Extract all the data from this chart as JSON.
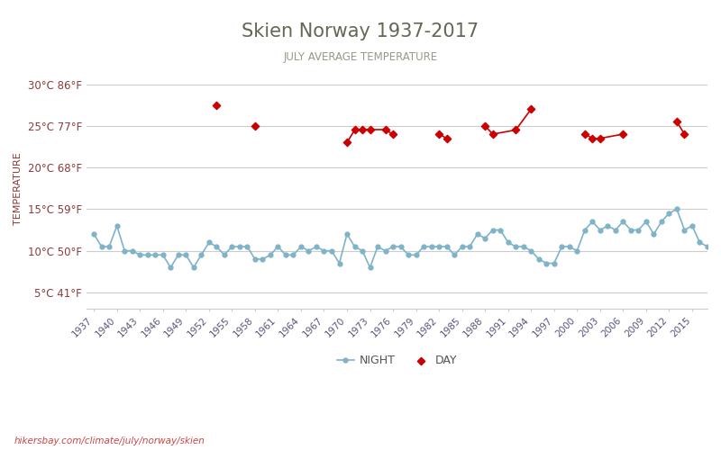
{
  "title": "Skien Norway 1937-2017",
  "subtitle": "JULY AVERAGE TEMPERATURE",
  "ylabel": "TEMPERATURE",
  "footer": "hikersbay.com/climate/july/norway/skien",
  "legend_night": "NIGHT",
  "legend_day": "DAY",
  "night_color": "#7fb3c8",
  "day_color": "#cc0000",
  "background_color": "#ffffff",
  "grid_color": "#cccccc",
  "axis_label_color": "#8b3a3a",
  "yticks_c": [
    5,
    10,
    15,
    20,
    25,
    30
  ],
  "yticks_f": [
    41,
    50,
    59,
    68,
    77,
    86
  ],
  "ylim": [
    3,
    32
  ],
  "xlim": [
    1936,
    2017
  ],
  "xticks": [
    1937,
    1940,
    1943,
    1946,
    1949,
    1952,
    1955,
    1958,
    1961,
    1964,
    1967,
    1970,
    1973,
    1976,
    1979,
    1982,
    1985,
    1988,
    1991,
    1994,
    1997,
    2000,
    2003,
    2006,
    2009,
    2012,
    2015
  ],
  "night_years": [
    1937,
    1938,
    1939,
    1940,
    1941,
    1942,
    1943,
    1944,
    1945,
    1946,
    1947,
    1948,
    1949,
    1950,
    1951,
    1952,
    1953,
    1954,
    1955,
    1956,
    1957,
    1958,
    1959,
    1960,
    1961,
    1962,
    1963,
    1964,
    1965,
    1966,
    1967,
    1968,
    1969,
    1970,
    1971,
    1972,
    1973,
    1974,
    1975,
    1976,
    1977,
    1978,
    1979,
    1980,
    1981,
    1982,
    1983,
    1984,
    1985,
    1986,
    1987,
    1988,
    1989,
    1990,
    1991,
    1992,
    1993,
    1994,
    1995,
    1996,
    1997,
    1998,
    1999,
    2000,
    2001,
    2002,
    2003,
    2004,
    2005,
    2006,
    2007,
    2008,
    2009,
    2010,
    2011,
    2012,
    2013,
    2014,
    2015,
    2016,
    2017
  ],
  "night_temps": [
    12.0,
    10.5,
    10.5,
    13.0,
    10.0,
    10.0,
    9.5,
    9.5,
    9.5,
    9.5,
    8.0,
    9.5,
    9.5,
    8.0,
    9.5,
    11.0,
    10.5,
    9.5,
    10.5,
    10.5,
    10.5,
    9.0,
    9.0,
    9.5,
    10.5,
    9.5,
    9.5,
    10.5,
    10.0,
    10.5,
    10.0,
    10.0,
    8.5,
    12.0,
    10.5,
    10.0,
    8.0,
    10.5,
    10.0,
    10.5,
    10.5,
    9.5,
    9.5,
    10.5,
    10.5,
    10.5,
    10.5,
    9.5,
    10.5,
    10.5,
    12.0,
    11.5,
    12.5,
    12.5,
    11.0,
    10.5,
    10.5,
    10.0,
    9.0,
    8.5,
    8.5,
    10.5,
    10.5,
    10.0,
    12.5,
    13.5,
    12.5,
    13.0,
    12.5,
    13.5,
    12.5,
    12.5,
    13.5,
    12.0,
    13.5,
    14.5,
    15.0,
    12.5,
    13.0,
    11.0,
    10.5
  ],
  "day_years": [
    1953,
    1958,
    1970,
    1971,
    1972,
    1973,
    1975,
    1976,
    1982,
    1983,
    1988,
    1989,
    1992,
    1994,
    2001,
    2002,
    2003,
    2006,
    2013,
    2014
  ],
  "day_temps": [
    27.5,
    25.0,
    23.0,
    24.5,
    24.5,
    24.5,
    24.5,
    24.0,
    24.0,
    23.5,
    25.0,
    24.0,
    24.5,
    27.0,
    24.0,
    23.5,
    23.5,
    24.0,
    25.5,
    24.0
  ],
  "day_connect_threshold": 4
}
